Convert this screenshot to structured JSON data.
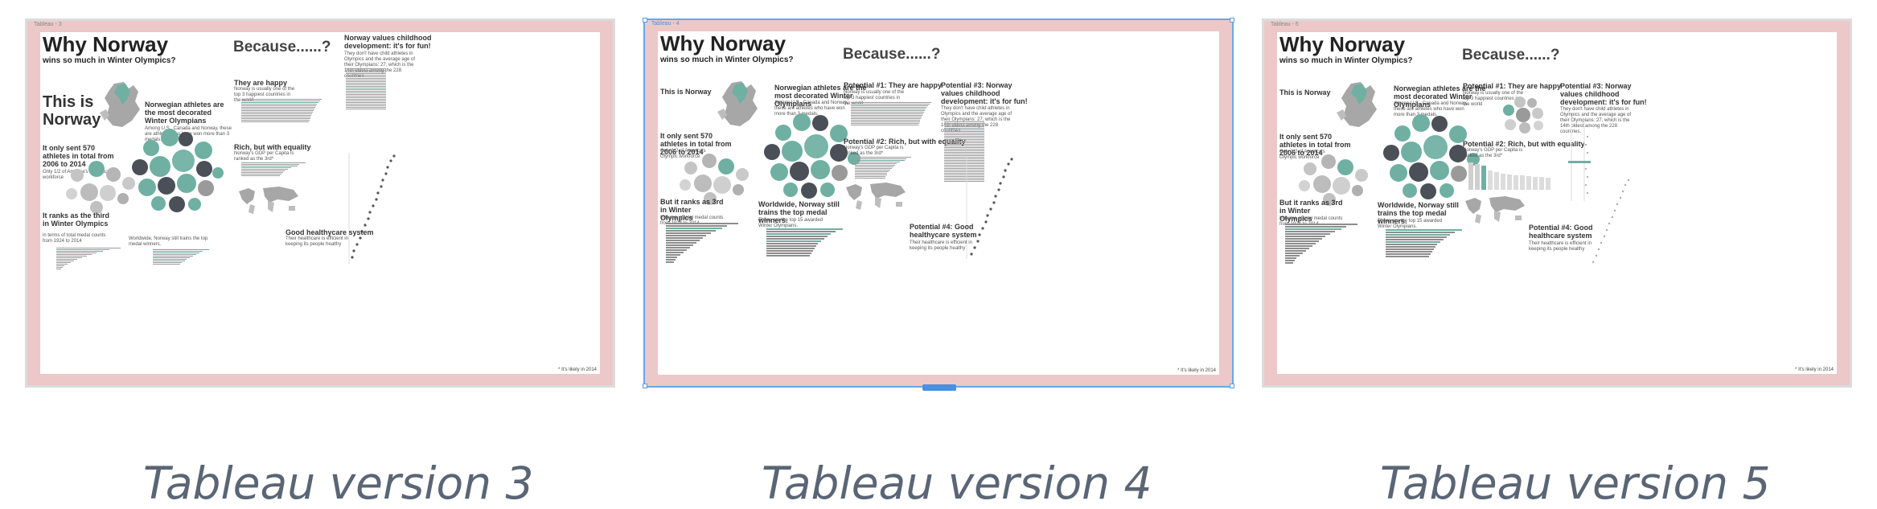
{
  "captions": [
    "Tableau version 3",
    "Tableau version 4",
    "Tableau version 5"
  ],
  "tabs": [
    "Tableau - 3",
    "Tableau - 4",
    "Tableau - 5"
  ],
  "common": {
    "title": "Why Norway",
    "subtitle": "wins so much in Winter Olympics?",
    "because": "Because......?",
    "decorated": "Norwegian athletes are the most decorated Winter Olympians",
    "decorated_sub": "Among U.S., Canada and Norway, these are athletes who have won more than 3 medals.",
    "sent": "It only sent 570 athletes in total from 2006 to 2014",
    "sent_sub": "Only 1/2 of America's Olympic workforce",
    "ranks": "But it ranks as 3rd in Winter Olympics",
    "ranks_sub": "in terms of total medal counts from 1924 to 2014",
    "happy_sub": "Norway is usually one of the top 3 happiest countries in the world",
    "rich_sub": "Norway's GDP per Capita is ranked as the 3rd*",
    "childhood_sub": "They don't have child athletes in Olympics and the average age of their Olympians: 27, which is the 14th oldest among the 228 countries.",
    "health_sub": "Their healthcare is efficient in keeping its people healthy",
    "worldwide": "Worldwide, Norway still trains the top medal winners.",
    "worldwide_sub": "These are the top 15 awarded Winter Olympians.",
    "footnote": "* It's likely in 2014"
  },
  "v3": {
    "this_is": "This is Norway",
    "happy": "They are happy",
    "rich": "Rich, but with equality",
    "childhood": "Norway values childhood development: it's for fun!",
    "health": "Good healthycare system",
    "ranks": "It ranks as the third in Winter Olympics",
    "ranks_sub": "in terms of total medal counts from 1924 to 2014",
    "sent": "It only sent 570 athletes in total from 2006 to 2014",
    "worldwide_v3": "Worldwide, Norway still trains the top medal winners."
  },
  "v4": {
    "this_is": "This is Norway",
    "happy": "Potential #1: They are happy",
    "rich": "Potential #2: Rich, but with equality",
    "childhood": "Potential #3: Norway values childhood development: it's for fun!",
    "health": "Potential #4: Good healthycare system"
  },
  "v5": {
    "this_is": "This is Norway",
    "happy": "Potential #1: They are happy",
    "rich": "Potential #2: Rich, but with equality",
    "childhood": "Potential #3: Norway values childhood development: it's for fun!",
    "health": "Potential #4: Good healthcare system"
  },
  "colors": {
    "teal": "#6fb0a3",
    "gray": "#9a9a9a",
    "dark": "#4a4f58",
    "pink": "#ecc8c8"
  }
}
